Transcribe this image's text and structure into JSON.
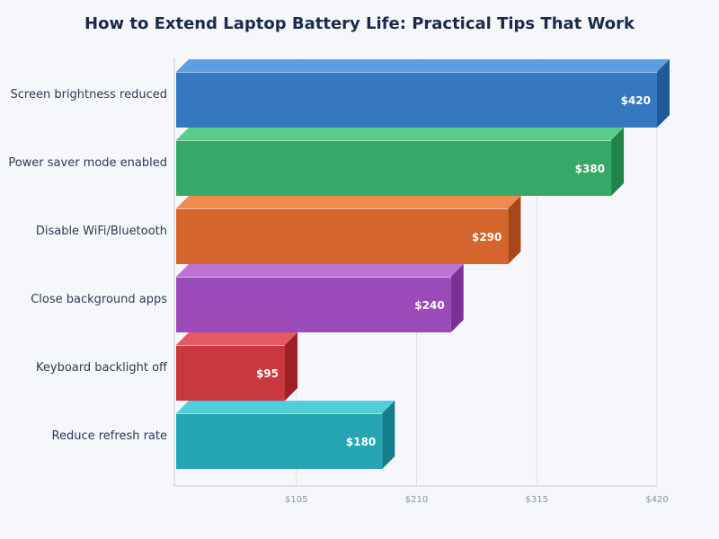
{
  "chart_data": {
    "type": "bar",
    "orientation": "horizontal",
    "style": "3d",
    "title": "How to Extend Laptop Battery Life: Practical Tips That Work",
    "categories": [
      "Screen brightness reduced",
      "Power saver mode enabled",
      "Disable WiFi/Bluetooth",
      "Close background apps",
      "Keyboard backlight off",
      "Reduce refresh rate"
    ],
    "values": [
      420,
      380,
      290,
      240,
      95,
      180
    ],
    "value_labels": [
      "$420",
      "$380",
      "$290",
      "$240",
      "$95",
      "$180"
    ],
    "colors": [
      {
        "front": "#3478c0",
        "top": "#5b9fe0",
        "side": "#1f5a9a"
      },
      {
        "front": "#36a968",
        "top": "#58cc88",
        "side": "#1f8445"
      },
      {
        "front": "#d4652d",
        "top": "#ef8a50",
        "side": "#a84818"
      },
      {
        "front": "#9a4bb8",
        "top": "#bd72d8",
        "side": "#7a3096"
      },
      {
        "front": "#c9373f",
        "top": "#e45a60",
        "side": "#9e2028"
      },
      {
        "front": "#26a5b5",
        "top": "#50cfdb",
        "side": "#167e8a"
      }
    ],
    "xlim": [
      0,
      420
    ],
    "x_ticks": [
      105,
      210,
      315,
      420
    ],
    "x_tick_labels": [
      "$105",
      "$210",
      "$315",
      "$420"
    ],
    "xlabel": "",
    "ylabel": "",
    "grid": true,
    "legend": "none"
  }
}
